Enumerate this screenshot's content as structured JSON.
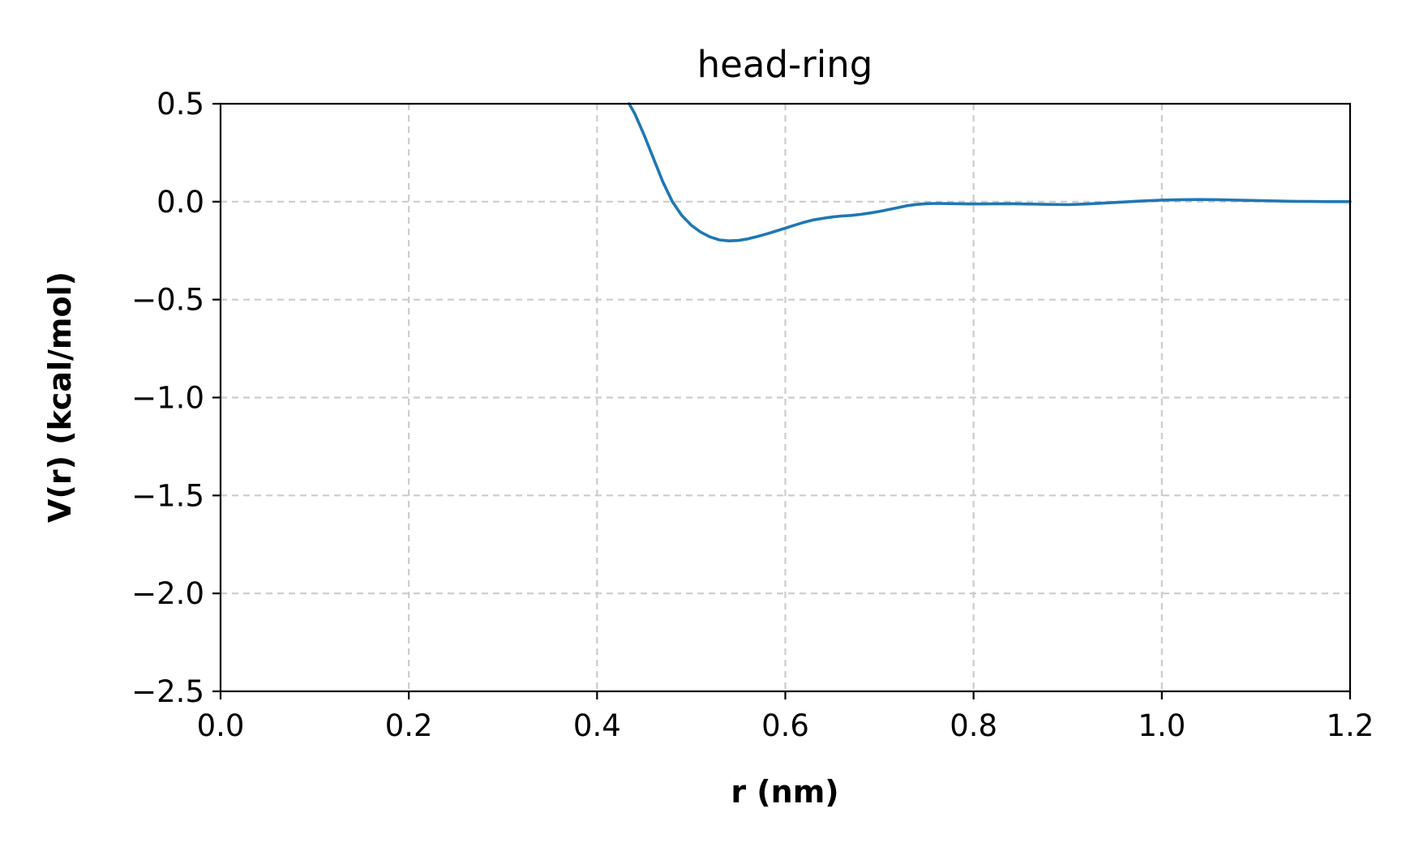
{
  "chart_data": {
    "type": "line",
    "title": "head-ring",
    "xlabel": "r (nm)",
    "ylabel": "V(r) (kcal/mol)",
    "xlim": [
      0.0,
      1.2
    ],
    "ylim": [
      -2.5,
      0.5
    ],
    "x_ticks": [
      0.0,
      0.2,
      0.4,
      0.6,
      0.8,
      1.0,
      1.2
    ],
    "x_tick_labels": [
      "0.0",
      "0.2",
      "0.4",
      "0.6",
      "0.8",
      "1.0",
      "1.2"
    ],
    "y_ticks": [
      0.5,
      0.0,
      -0.5,
      -1.0,
      -1.5,
      -2.0,
      -2.5
    ],
    "y_tick_labels": [
      "0.5",
      "0.0",
      "−0.5",
      "−1.0",
      "−1.5",
      "−2.0",
      "−2.5"
    ],
    "grid": true,
    "grid_style": "dashed",
    "series": [
      {
        "color": "#1f77b4",
        "x": [
          0.434,
          0.44,
          0.45,
          0.46,
          0.47,
          0.48,
          0.49,
          0.5,
          0.51,
          0.52,
          0.53,
          0.54,
          0.55,
          0.56,
          0.57,
          0.58,
          0.59,
          0.6,
          0.61,
          0.62,
          0.63,
          0.64,
          0.65,
          0.66,
          0.67,
          0.68,
          0.69,
          0.7,
          0.71,
          0.72,
          0.73,
          0.74,
          0.75,
          0.76,
          0.78,
          0.8,
          0.84,
          0.88,
          0.9,
          0.92,
          0.95,
          0.98,
          1.0,
          1.02,
          1.04,
          1.06,
          1.08,
          1.1,
          1.12,
          1.14,
          1.16,
          1.18,
          1.2
        ],
        "y": [
          0.5,
          0.45,
          0.34,
          0.22,
          0.1,
          0.0,
          -0.07,
          -0.12,
          -0.155,
          -0.18,
          -0.195,
          -0.2,
          -0.198,
          -0.19,
          -0.178,
          -0.165,
          -0.15,
          -0.135,
          -0.12,
          -0.105,
          -0.093,
          -0.085,
          -0.078,
          -0.073,
          -0.07,
          -0.065,
          -0.058,
          -0.05,
          -0.04,
          -0.03,
          -0.02,
          -0.014,
          -0.01,
          -0.009,
          -0.01,
          -0.012,
          -0.01,
          -0.014,
          -0.015,
          -0.012,
          -0.004,
          0.004,
          0.008,
          0.01,
          0.011,
          0.01,
          0.008,
          0.006,
          0.004,
          0.002,
          0.001,
          0.0,
          0.0
        ]
      }
    ]
  }
}
